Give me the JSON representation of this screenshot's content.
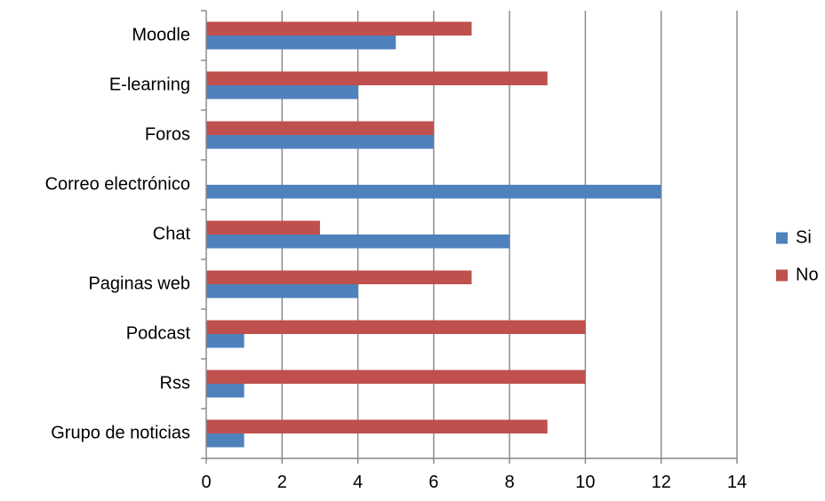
{
  "chart_data": {
    "type": "bar",
    "orientation": "horizontal",
    "title": "",
    "xlabel": "",
    "ylabel": "",
    "categories": [
      "Moodle",
      "E-learning",
      "Foros",
      "Correo electrónico",
      "Chat",
      "Paginas web",
      "Podcast",
      "Rss",
      "Grupo de noticias"
    ],
    "series": [
      {
        "name": "Si",
        "color": "#4f81bd",
        "values": [
          5,
          4,
          6,
          12,
          8,
          4,
          1,
          1,
          1
        ]
      },
      {
        "name": "No",
        "color": "#c0504d",
        "values": [
          7,
          9,
          6,
          0,
          3,
          7,
          10,
          10,
          9
        ]
      }
    ],
    "xlim": [
      0,
      14
    ],
    "xticks": [
      0,
      2,
      4,
      6,
      8,
      10,
      12,
      14
    ],
    "xtick_labels": [
      "0",
      "2",
      "4",
      "6",
      "8",
      "10",
      "12",
      "14"
    ],
    "grid": "vertical",
    "grid_color": "#868686",
    "legend_position": "right"
  }
}
